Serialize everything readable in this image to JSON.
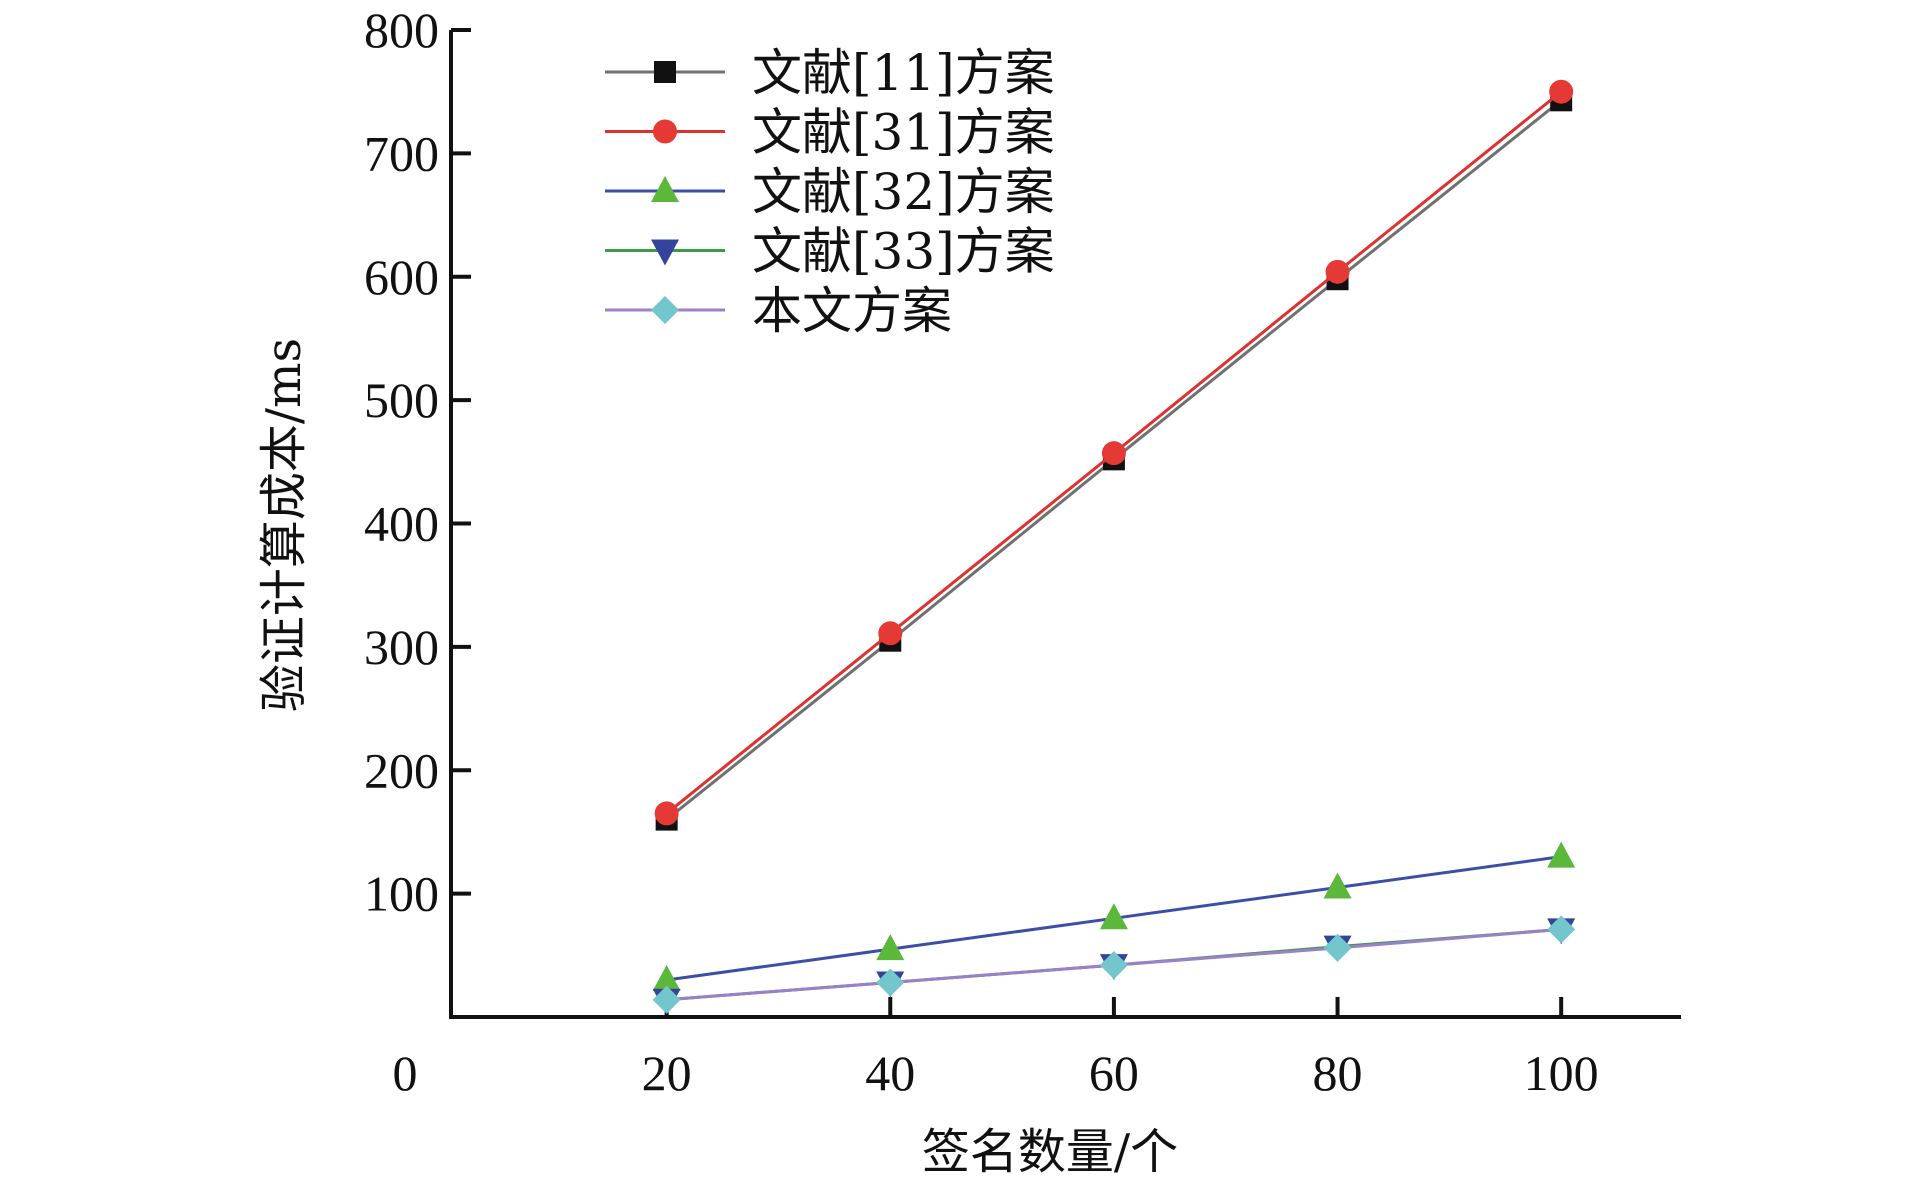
{
  "chart_data": {
    "type": "line",
    "title": "",
    "xlabel": "签名数量/个",
    "ylabel": "验证计算成本/ms",
    "x": [
      20,
      40,
      60,
      80,
      100
    ],
    "x_ticks": [
      "0",
      "20",
      "40",
      "60",
      "80",
      "100"
    ],
    "y_ticks": [
      "100",
      "200",
      "300",
      "400",
      "500",
      "600",
      "700",
      "800"
    ],
    "xlim": [
      0,
      110
    ],
    "ylim": [
      0,
      800
    ],
    "grid": false,
    "legend_position": "top-left",
    "series": [
      {
        "name": "文献[11]方案",
        "values": [
          160,
          305,
          452,
          598,
          743
        ],
        "line_color": "#707070",
        "marker": "square",
        "marker_color": "#111111"
      },
      {
        "name": "文献[31]方案",
        "values": [
          165,
          311,
          457,
          604,
          750
        ],
        "line_color": "#e03030",
        "marker": "circle",
        "marker_color": "#e53935"
      },
      {
        "name": "文献[32]方案",
        "values": [
          30,
          55,
          80,
          105,
          130
        ],
        "line_color": "#3b4fa8",
        "marker": "triangle-up",
        "marker_color": "#5cb83a"
      },
      {
        "name": "文献[33]方案",
        "values": [
          14,
          28,
          42,
          57,
          71
        ],
        "line_color": "#3c9a48",
        "marker": "triangle-down",
        "marker_color": "#34449c"
      },
      {
        "name": "本文方案",
        "values": [
          14,
          28,
          42,
          56,
          71
        ],
        "line_color": "#9a80c8",
        "marker": "diamond",
        "marker_color": "#72c6cc"
      }
    ]
  }
}
